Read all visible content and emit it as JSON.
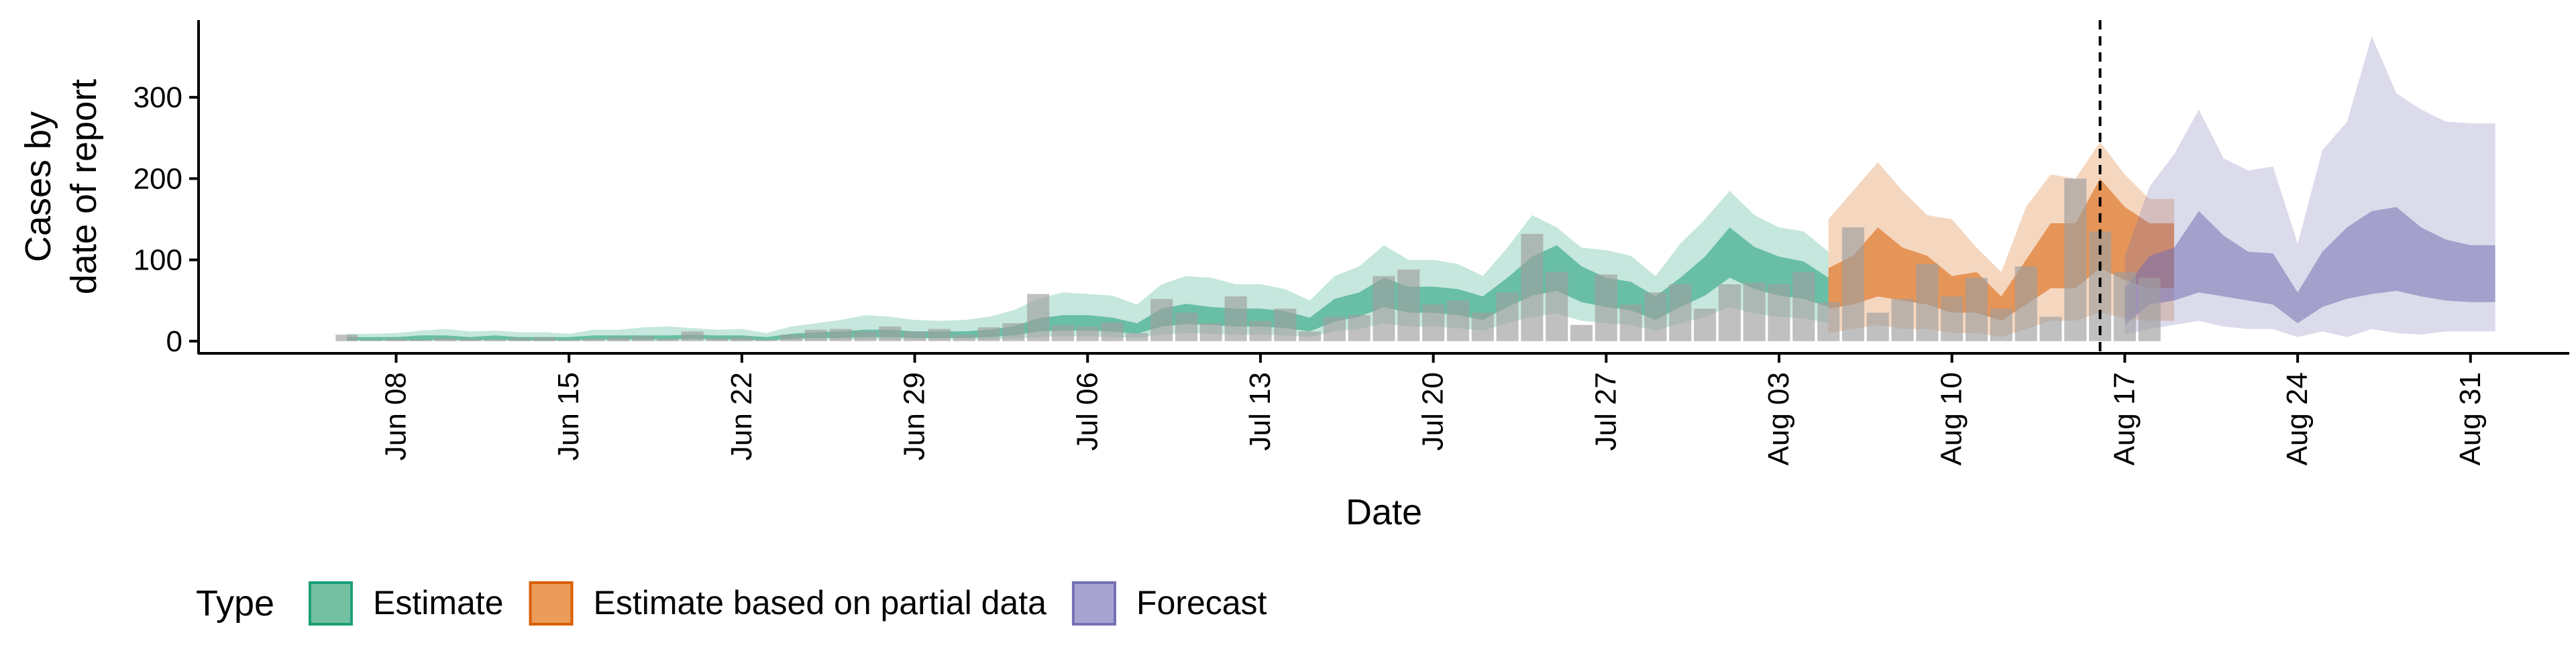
{
  "chart_data": {
    "type": "area",
    "xlabel": "Date",
    "ylabel_lines": [
      "Cases by",
      "date of report"
    ],
    "x_tick_labels": [
      "Jun 08",
      "Jun 15",
      "Jun 22",
      "Jun 29",
      "Jul 06",
      "Jul 13",
      "Jul 20",
      "Jul 27",
      "Aug 03",
      "Aug 10",
      "Aug 17",
      "Aug 24",
      "Aug 31"
    ],
    "x_tick_dates": [
      "2020-06-08",
      "2020-06-15",
      "2020-06-22",
      "2020-06-29",
      "2020-07-06",
      "2020-07-13",
      "2020-07-20",
      "2020-07-27",
      "2020-08-03",
      "2020-08-10",
      "2020-08-17",
      "2020-08-24",
      "2020-08-31"
    ],
    "y_ticks": [
      0,
      100,
      200,
      300
    ],
    "ylim": [
      -15,
      395
    ],
    "xlim": [
      "2020-05-31",
      "2020-09-04"
    ],
    "forecast_line_date": "2020-08-16",
    "legend": {
      "title": "Type",
      "position": "bottom",
      "entries": [
        {
          "label": "Estimate",
          "fill": "#73c1a2",
          "stroke": "#1b9e77"
        },
        {
          "label": "Estimate based on partial data",
          "fill": "#eb9c5b",
          "stroke": "#d95f02"
        },
        {
          "label": "Forecast",
          "fill": "#a8a4d2",
          "stroke": "#7570b3"
        }
      ]
    },
    "colors": {
      "estimate": "#1b9e77",
      "partial": "#d95f02",
      "forecast": "#7570b3",
      "bars": "#9e9e9e"
    },
    "bars": {
      "start_date": "2020-06-06",
      "values": [
        8,
        2,
        3,
        2,
        4,
        3,
        2,
        4,
        5,
        2,
        3,
        5,
        6,
        3,
        12,
        4,
        5,
        2,
        8,
        14,
        15,
        12,
        18,
        12,
        15,
        8,
        17,
        22,
        58,
        20,
        18,
        23,
        10,
        52,
        35,
        22,
        55,
        25,
        40,
        12,
        30,
        32,
        80,
        88,
        45,
        50,
        35,
        60,
        132,
        85,
        20,
        82,
        45,
        60,
        70,
        40,
        70,
        72,
        70,
        85,
        48,
        140,
        35,
        52,
        95,
        55,
        78,
        40,
        92,
        30,
        200,
        135,
        85,
        78
      ]
    },
    "series": [
      {
        "name": "Estimate",
        "start_date": "2020-06-06",
        "median": [
          3,
          3,
          3,
          4,
          4,
          3,
          4,
          3,
          3,
          3,
          4,
          4,
          4,
          4,
          5,
          4,
          4,
          3,
          6,
          7,
          8,
          9,
          9,
          8,
          8,
          8,
          9,
          12,
          20,
          22,
          22,
          20,
          15,
          28,
          33,
          30,
          28,
          28,
          26,
          20,
          38,
          45,
          60,
          50,
          50,
          48,
          40,
          60,
          80,
          90,
          70,
          60,
          55,
          40,
          60,
          80,
          110,
          90,
          80,
          75,
          60
        ],
        "lower_50": [
          1,
          1,
          1,
          1,
          2,
          1,
          2,
          1,
          1,
          1,
          2,
          2,
          2,
          2,
          3,
          2,
          2,
          1,
          3,
          4,
          4,
          5,
          5,
          4,
          4,
          4,
          5,
          7,
          12,
          13,
          13,
          12,
          9,
          18,
          21,
          20,
          18,
          18,
          16,
          12,
          24,
          30,
          42,
          35,
          35,
          32,
          26,
          42,
          56,
          62,
          48,
          42,
          38,
          26,
          42,
          56,
          78,
          64,
          56,
          52,
          42
        ],
        "upper_50": [
          5,
          5,
          5,
          7,
          7,
          5,
          7,
          5,
          5,
          5,
          7,
          7,
          7,
          7,
          8,
          7,
          7,
          5,
          9,
          11,
          12,
          14,
          14,
          12,
          12,
          12,
          14,
          18,
          28,
          32,
          32,
          29,
          22,
          40,
          46,
          42,
          40,
          40,
          37,
          29,
          52,
          60,
          78,
          67,
          67,
          64,
          55,
          78,
          104,
          118,
          92,
          78,
          73,
          55,
          78,
          104,
          140,
          116,
          104,
          98,
          78
        ],
        "lower_90": [
          0,
          0,
          0,
          0,
          0,
          0,
          0,
          0,
          0,
          0,
          0,
          0,
          0,
          0,
          1,
          0,
          0,
          0,
          1,
          1,
          2,
          2,
          2,
          2,
          2,
          2,
          2,
          3,
          5,
          6,
          6,
          5,
          4,
          8,
          10,
          9,
          8,
          8,
          7,
          5,
          12,
          15,
          22,
          18,
          18,
          16,
          13,
          22,
          30,
          34,
          25,
          22,
          20,
          13,
          22,
          30,
          42,
          34,
          30,
          28,
          22
        ],
        "upper_90": [
          9,
          9,
          10,
          13,
          15,
          12,
          13,
          11,
          11,
          9,
          14,
          14,
          17,
          18,
          16,
          14,
          15,
          10,
          18,
          22,
          26,
          32,
          30,
          26,
          25,
          26,
          30,
          38,
          52,
          60,
          58,
          56,
          45,
          70,
          80,
          78,
          70,
          70,
          64,
          50,
          80,
          92,
          118,
          100,
          100,
          95,
          80,
          115,
          155,
          140,
          115,
          112,
          105,
          80,
          120,
          150,
          185,
          155,
          140,
          135,
          110
        ]
      },
      {
        "name": "Estimate based on partial data",
        "start_date": "2020-08-05",
        "median": [
          60,
          70,
          90,
          75,
          70,
          55,
          55,
          35,
          68,
          98,
          98,
          140,
          115,
          100,
          100
        ],
        "lower_50": [
          40,
          45,
          55,
          50,
          45,
          35,
          35,
          25,
          45,
          65,
          65,
          90,
          75,
          65,
          65
        ],
        "upper_50": [
          90,
          105,
          140,
          115,
          105,
          80,
          85,
          55,
          100,
          145,
          145,
          200,
          165,
          145,
          145
        ],
        "lower_90": [
          10,
          15,
          20,
          15,
          15,
          10,
          10,
          5,
          15,
          25,
          25,
          35,
          28,
          25,
          25
        ],
        "upper_90": [
          150,
          185,
          220,
          185,
          155,
          150,
          115,
          85,
          165,
          205,
          200,
          245,
          205,
          175,
          175
        ]
      },
      {
        "name": "Forecast",
        "start_date": "2020-08-17",
        "median": [
          40,
          70,
          75,
          95,
          85,
          78,
          70,
          45,
          68,
          85,
          90,
          100,
          88,
          80,
          75,
          75
        ],
        "lower_50": [
          20,
          45,
          50,
          60,
          55,
          50,
          45,
          22,
          42,
          52,
          58,
          62,
          55,
          50,
          48,
          48
        ],
        "upper_50": [
          65,
          105,
          115,
          160,
          130,
          110,
          108,
          60,
          110,
          140,
          160,
          165,
          140,
          125,
          118,
          118
        ],
        "lower_90": [
          8,
          15,
          20,
          25,
          18,
          15,
          15,
          5,
          12,
          5,
          15,
          10,
          8,
          12,
          12,
          12
        ],
        "upper_90": [
          105,
          190,
          230,
          285,
          225,
          210,
          215,
          120,
          235,
          270,
          375,
          305,
          285,
          270,
          268,
          268
        ]
      }
    ]
  }
}
